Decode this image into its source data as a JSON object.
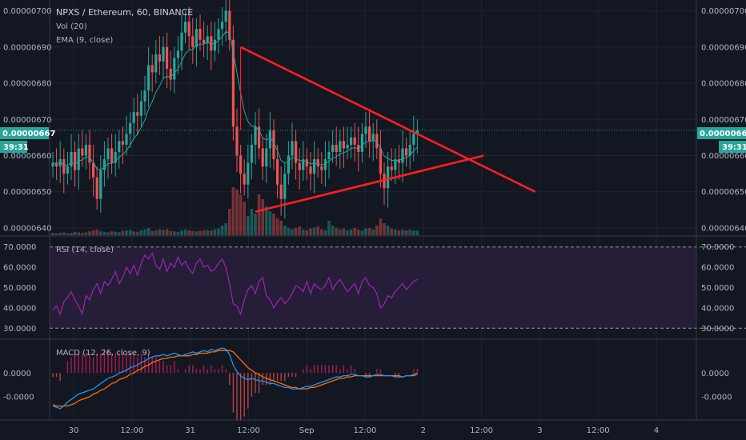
{
  "header": {
    "title": "NPXS / Ethereum, 60, BINANCE",
    "vol_label": "Vol (20)",
    "ema_label": "EMA (9, close)"
  },
  "price_axis": {
    "ticks": [
      "0.00000700",
      "0.00000690",
      "0.00000680",
      "0.00000670",
      "0.00000660",
      "0.00000650",
      "0.00000640"
    ],
    "current_price": "0.00000667",
    "countdown": "39:31"
  },
  "rsi": {
    "label": "RSI (14, close)",
    "ticks": [
      "70.0000",
      "60.0000",
      "50.0000",
      "40.0000",
      "30.0000"
    ]
  },
  "macd": {
    "label": "MACD (12, 26, close, 9)",
    "ticks": [
      "0.0000",
      "-0.0000"
    ]
  },
  "time_axis": {
    "labels": [
      "30",
      "12:00",
      "31",
      "12:00",
      "Sep",
      "12:00",
      "2",
      "12:00",
      "3",
      "12:00",
      "4"
    ]
  },
  "colors": {
    "background": "#131722",
    "up": "#26a69a",
    "down": "#ef5350",
    "drawing": "#ff1f1f",
    "rsi_fill": "#2a1f3d",
    "rsi_line": "#9c27b0",
    "macd_line": "#2196f3",
    "signal_line": "#ff6d00"
  },
  "chart_data": {
    "type": "candlestick",
    "symbol": "NPXS / Ethereum",
    "interval": "60",
    "exchange": "BINANCE",
    "last_price": 6.67e-06,
    "ylim": [
      6.38e-06,
      7.03e-06
    ],
    "closes": [
      6.58e-06,
      6.57e-06,
      6.59e-06,
      6.55e-06,
      6.57e-06,
      6.61e-06,
      6.56e-06,
      6.62e-06,
      6.6e-06,
      6.63e-06,
      6.58e-06,
      6.54e-06,
      6.48e-06,
      6.56e-06,
      6.59e-06,
      6.62e-06,
      6.58e-06,
      6.61e-06,
      6.64e-06,
      6.63e-06,
      6.66e-06,
      6.69e-06,
      6.72e-06,
      6.71e-06,
      6.75e-06,
      6.78e-06,
      6.85e-06,
      6.83e-06,
      6.88e-06,
      6.86e-06,
      6.9e-06,
      6.84e-06,
      6.81e-06,
      6.87e-06,
      6.89e-06,
      6.94e-06,
      6.97e-06,
      6.93e-06,
      6.9e-06,
      6.95e-06,
      6.92e-06,
      6.91e-06,
      6.93e-06,
      6.89e-06,
      6.92e-06,
      6.95e-06,
      6.97e-06,
      7e-06,
      6.92e-06,
      6.68e-06,
      6.6e-06,
      6.55e-06,
      6.52e-06,
      6.58e-06,
      6.63e-06,
      6.68e-06,
      6.62e-06,
      6.57e-06,
      6.62e-06,
      6.67e-06,
      6.59e-06,
      6.52e-06,
      6.48e-06,
      6.55e-06,
      6.6e-06,
      6.64e-06,
      6.58e-06,
      6.56e-06,
      6.59e-06,
      6.57e-06,
      6.55e-06,
      6.59e-06,
      6.57e-06,
      6.56e-06,
      6.59e-06,
      6.61e-06,
      6.63e-06,
      6.61e-06,
      6.64e-06,
      6.62e-06,
      6.63e-06,
      6.65e-06,
      6.63e-06,
      6.61e-06,
      6.66e-06,
      6.68e-06,
      6.64e-06,
      6.66e-06,
      6.62e-06,
      6.55e-06,
      6.51e-06,
      6.57e-06,
      6.56e-06,
      6.59e-06,
      6.58e-06,
      6.62e-06,
      6.6e-06,
      6.63e-06,
      6.66e-06,
      6.67e-06
    ],
    "volume_relative": [
      0.05,
      0.04,
      0.05,
      0.06,
      0.04,
      0.05,
      0.07,
      0.06,
      0.05,
      0.06,
      0.08,
      0.1,
      0.12,
      0.08,
      0.07,
      0.06,
      0.08,
      0.07,
      0.06,
      0.09,
      0.1,
      0.11,
      0.08,
      0.07,
      0.1,
      0.12,
      0.15,
      0.09,
      0.1,
      0.12,
      0.11,
      0.13,
      0.09,
      0.08,
      0.07,
      0.1,
      0.12,
      0.1,
      0.09,
      0.08,
      0.09,
      0.1,
      0.11,
      0.1,
      0.12,
      0.14,
      0.2,
      0.25,
      0.55,
      1.0,
      0.95,
      0.85,
      0.7,
      0.4,
      0.55,
      0.45,
      0.85,
      0.75,
      0.6,
      0.5,
      0.45,
      0.35,
      0.3,
      0.2,
      0.15,
      0.12,
      0.15,
      0.18,
      0.12,
      0.1,
      0.14,
      0.16,
      0.18,
      0.12,
      0.1,
      0.3,
      0.2,
      0.15,
      0.12,
      0.14,
      0.1,
      0.12,
      0.15,
      0.12,
      0.1,
      0.14,
      0.15,
      0.12,
      0.2,
      0.35,
      0.25,
      0.2,
      0.14,
      0.12,
      0.1,
      0.12,
      0.1,
      0.12,
      0.1,
      0.1
    ],
    "rsi_ylim": [
      25,
      75
    ],
    "rsi_bands": [
      30,
      70
    ],
    "rsi": [
      39,
      41,
      37,
      43,
      45,
      48,
      44,
      41,
      37,
      46,
      44,
      49,
      52,
      47,
      53,
      51,
      54,
      58,
      52,
      55,
      60,
      57,
      61,
      56,
      62,
      66,
      64,
      67,
      61,
      59,
      64,
      58,
      62,
      60,
      65,
      61,
      63,
      59,
      57,
      62,
      64,
      60,
      61,
      58,
      59,
      62,
      64,
      60,
      52,
      42,
      41,
      37,
      44,
      49,
      51,
      47,
      53,
      55,
      46,
      44,
      40,
      43,
      45,
      42,
      44,
      47,
      51,
      50,
      48,
      53,
      47,
      52,
      50,
      49,
      51,
      55,
      49,
      52,
      54,
      51,
      48,
      50,
      52,
      47,
      53,
      55,
      51,
      50,
      47,
      40,
      42,
      46,
      45,
      48,
      50,
      52,
      49,
      51,
      53,
      54
    ],
    "macd_ylim": [
      -0.035,
      0.025
    ],
    "macd": [
      -0.025,
      -0.026,
      -0.027,
      -0.025,
      -0.022,
      -0.02,
      -0.018,
      -0.016,
      -0.015,
      -0.014,
      -0.013,
      -0.012,
      -0.01,
      -0.008,
      -0.006,
      -0.004,
      -0.003,
      -0.002,
      0.0,
      0.001,
      0.002,
      0.004,
      0.005,
      0.006,
      0.008,
      0.009,
      0.011,
      0.012,
      0.013,
      0.013,
      0.014,
      0.013,
      0.014,
      0.015,
      0.014,
      0.013,
      0.014,
      0.015,
      0.016,
      0.015,
      0.016,
      0.017,
      0.016,
      0.018,
      0.017,
      0.018,
      0.019,
      0.018,
      0.014,
      0.006,
      0.001,
      -0.002,
      -0.004,
      -0.005,
      -0.004,
      -0.005,
      -0.006,
      -0.006,
      -0.007,
      -0.008,
      -0.008,
      -0.009,
      -0.01,
      -0.011,
      -0.011,
      -0.012,
      -0.012,
      -0.012,
      -0.011,
      -0.01,
      -0.01,
      -0.009,
      -0.008,
      -0.007,
      -0.006,
      -0.005,
      -0.004,
      -0.003,
      -0.003,
      -0.002,
      -0.002,
      -0.001,
      -0.001,
      -0.002,
      -0.002,
      -0.003,
      -0.003,
      -0.002,
      -0.001,
      -0.001,
      -0.002,
      -0.002,
      -0.002,
      -0.003,
      -0.003,
      -0.003,
      -0.002,
      -0.002,
      -0.001,
      0.0
    ],
    "macd_signal": [
      -0.024,
      -0.025,
      -0.025,
      -0.025,
      -0.025,
      -0.024,
      -0.023,
      -0.021,
      -0.02,
      -0.019,
      -0.018,
      -0.016,
      -0.015,
      -0.013,
      -0.012,
      -0.01,
      -0.008,
      -0.007,
      -0.005,
      -0.004,
      -0.003,
      -0.001,
      0.0,
      0.002,
      0.003,
      0.005,
      0.006,
      0.008,
      0.009,
      0.01,
      0.011,
      0.011,
      0.012,
      0.012,
      0.013,
      0.013,
      0.013,
      0.013,
      0.014,
      0.014,
      0.015,
      0.015,
      0.015,
      0.016,
      0.016,
      0.017,
      0.017,
      0.017,
      0.017,
      0.016,
      0.013,
      0.01,
      0.007,
      0.004,
      0.002,
      0.0,
      -0.001,
      -0.003,
      -0.004,
      -0.005,
      -0.006,
      -0.007,
      -0.008,
      -0.009,
      -0.01,
      -0.011,
      -0.011,
      -0.012,
      -0.012,
      -0.012,
      -0.011,
      -0.011,
      -0.01,
      -0.009,
      -0.008,
      -0.007,
      -0.006,
      -0.005,
      -0.004,
      -0.004,
      -0.003,
      -0.003,
      -0.002,
      -0.002,
      -0.002,
      -0.002,
      -0.002,
      -0.002,
      -0.002,
      -0.002,
      -0.002,
      -0.002,
      -0.002,
      -0.002,
      -0.002,
      -0.003,
      -0.002,
      -0.002,
      -0.002,
      -0.001
    ],
    "trendlines": [
      {
        "name": "upper",
        "from_bar": 51,
        "from_price": 6.9e-06,
        "to_bar": 131,
        "to_price": 6.5e-06
      },
      {
        "name": "lower",
        "from_bar": 55,
        "from_price": 6.445e-06,
        "to_bar": 117,
        "to_price": 6.6e-06
      },
      {
        "name": "marker",
        "from_bar": 51,
        "from_price": 6.9e-06,
        "to_bar": 51,
        "to_price": 6.67e-06
      }
    ]
  }
}
